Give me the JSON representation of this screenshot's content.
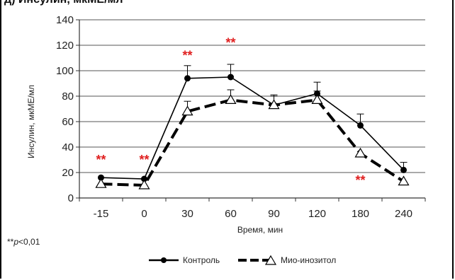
{
  "header_text": "д) Инсулин, мкМЕ/мл",
  "note": {
    "prefix": "**",
    "italic": "p",
    "suffix": "<0,01"
  },
  "chart_data": {
    "type": "line",
    "title": "",
    "xlabel": "Время, мин",
    "ylabel": "Инсулин, мкМЕ/мл",
    "categories": [
      "-15",
      "0",
      "30",
      "60",
      "90",
      "120",
      "180",
      "240"
    ],
    "ylim": [
      0,
      140
    ],
    "yticks": [
      0,
      20,
      40,
      60,
      80,
      100,
      120,
      140
    ],
    "grid": "horizontal",
    "legend_position": "bottom",
    "series": [
      {
        "name": "Контроль",
        "values": [
          16,
          15,
          94,
          95,
          73,
          82,
          57,
          22
        ],
        "errors": [
          0,
          0,
          10,
          10,
          8,
          9,
          9,
          6
        ],
        "marker": "filled-circle",
        "line": "solid",
        "color": "#000000"
      },
      {
        "name": "Мио-инозитол",
        "values": [
          11,
          10,
          68,
          77,
          73,
          77,
          35,
          13
        ],
        "errors": [
          0,
          0,
          8,
          8,
          7,
          7,
          0,
          0
        ],
        "marker": "open-triangle",
        "line": "dashed",
        "color": "#000000"
      }
    ],
    "annotations": [
      {
        "text": "**",
        "category": "-15",
        "y": 30
      },
      {
        "text": "**",
        "category": "0",
        "y": 30
      },
      {
        "text": "**",
        "category": "30",
        "y": 112
      },
      {
        "text": "**",
        "category": "60",
        "y": 122
      },
      {
        "text": "**",
        "category": "180",
        "y": 14
      }
    ],
    "annotation_color": "#e02020"
  }
}
